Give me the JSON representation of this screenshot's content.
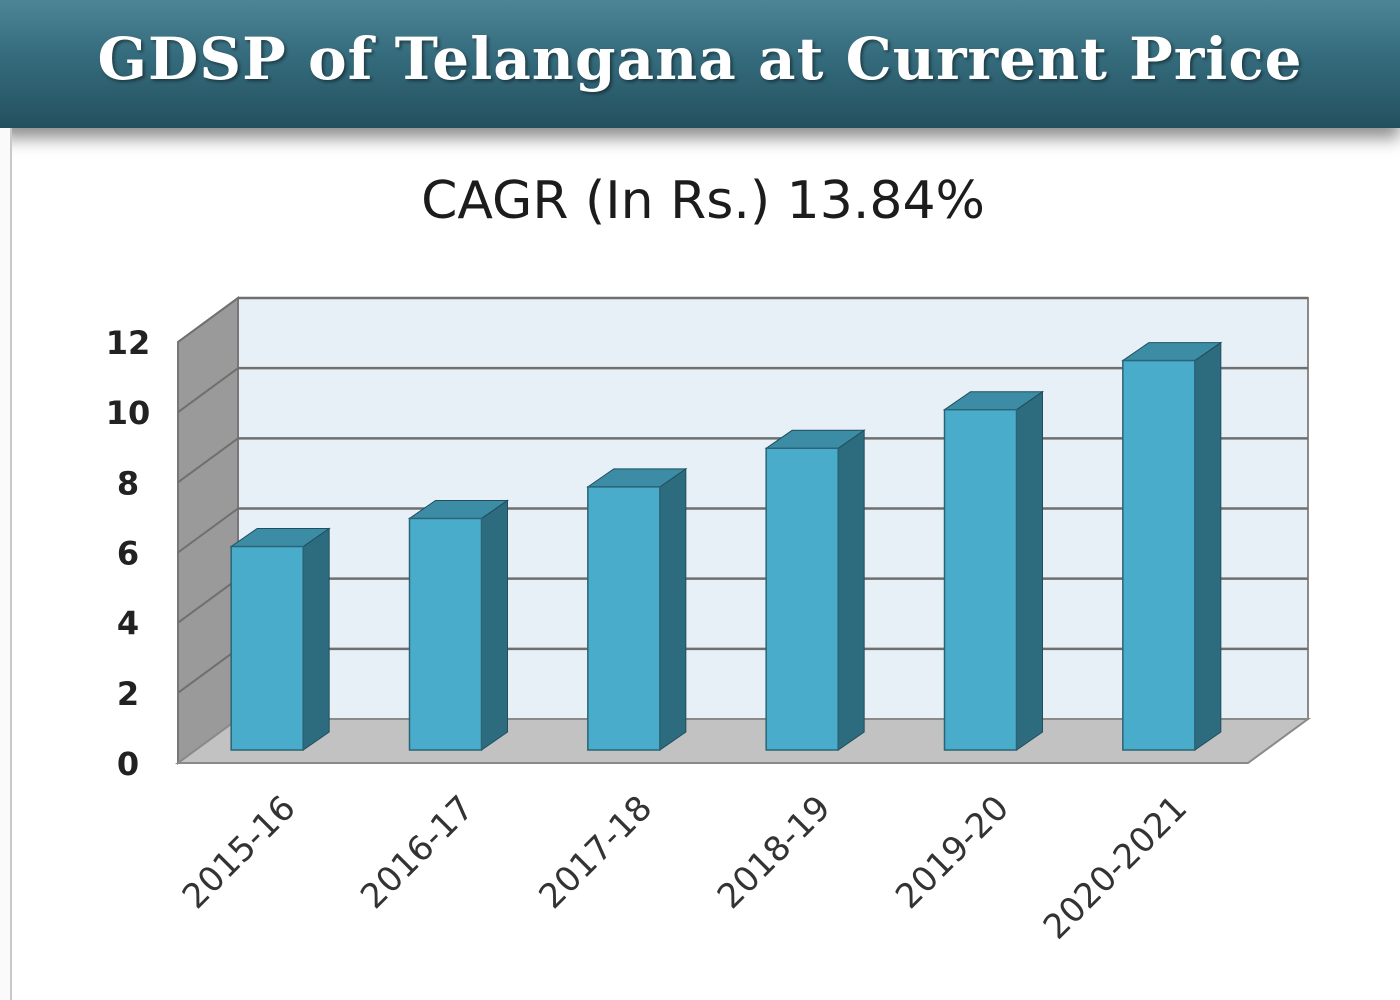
{
  "header": {
    "title": "GDSP of Telangana at Current Price"
  },
  "chart_data": {
    "type": "bar",
    "subtitle": "CAGR (In Rs.) 13.84%",
    "categories": [
      "2015-16",
      "2016-17",
      "2017-18",
      "2018-19",
      "2019-20",
      "2020-2021"
    ],
    "values": [
      5.8,
      6.6,
      7.5,
      8.6,
      9.7,
      11.1
    ],
    "ylim": [
      0,
      12
    ],
    "yticks": [
      "0",
      "2",
      "4",
      "6",
      "8",
      "10",
      "12"
    ],
    "grid": true,
    "style": "3d-column",
    "colors": {
      "bar_front": "#4aaccb",
      "bar_side": "#2d6c7f",
      "bar_top": "#3d8ca6",
      "wall": "#e8f0f7",
      "side_wall": "#9a9a9a",
      "floor": "#c2c2c2"
    }
  }
}
